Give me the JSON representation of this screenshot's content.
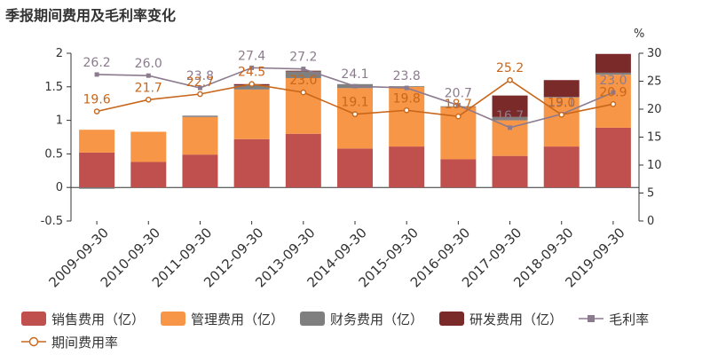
{
  "title": "季报期间费用及毛利率变化",
  "chart_data": {
    "type": "bar",
    "stacked": true,
    "categories": [
      "2009-09-30",
      "2010-09-30",
      "2011-09-30",
      "2012-09-30",
      "2013-09-30",
      "2014-09-30",
      "2015-09-30",
      "2016-09-30",
      "2017-09-30",
      "2018-09-30",
      "2019-09-30"
    ],
    "y_left": {
      "ylim": [
        -0.5,
        2
      ],
      "ticks": [
        -0.5,
        0,
        0.5,
        1,
        1.5,
        2
      ],
      "unit": ""
    },
    "y_right": {
      "ylim": [
        0,
        30
      ],
      "ticks": [
        0,
        5,
        10,
        15,
        20,
        25,
        30
      ],
      "unit": "%"
    },
    "series": [
      {
        "name": "销售费用（亿）",
        "color": "#c0504d",
        "axis": "left",
        "type": "bar",
        "values": [
          0.52,
          0.38,
          0.49,
          0.72,
          0.8,
          0.58,
          0.61,
          0.42,
          0.47,
          0.61,
          0.89
        ]
      },
      {
        "name": "管理费用（亿）",
        "color": "#f79646",
        "axis": "left",
        "type": "bar",
        "values": [
          0.34,
          0.45,
          0.56,
          0.74,
          0.83,
          0.9,
          0.89,
          0.78,
          0.53,
          0.73,
          0.79
        ]
      },
      {
        "name": "财务费用（亿）",
        "color": "#7f7f7f",
        "axis": "left",
        "type": "bar",
        "values": [
          -0.02,
          0.0,
          0.02,
          0.06,
          0.1,
          0.06,
          0.01,
          0.01,
          0.05,
          0.01,
          0.03
        ]
      },
      {
        "name": "研发费用（亿）",
        "color": "#7b2a2a",
        "axis": "left",
        "type": "bar",
        "values": [
          0,
          0,
          0,
          0.02,
          0.01,
          0,
          0,
          0,
          0.32,
          0.25,
          0.28
        ]
      },
      {
        "name": "毛利率",
        "color": "#8c7b8e",
        "axis": "right",
        "type": "line",
        "marker": "square",
        "values": [
          26.2,
          26.0,
          23.8,
          27.4,
          27.2,
          24.1,
          23.8,
          20.7,
          16.7,
          19.1,
          23.0
        ],
        "labels": [
          "26.2",
          "26.0",
          "23.8",
          "27.4",
          "27.2",
          "24.1",
          "23.8",
          "20.7",
          "16.7",
          "19.1",
          "23.0"
        ]
      },
      {
        "name": "期间费用率",
        "color": "#c8661a",
        "axis": "right",
        "type": "line",
        "marker": "circle",
        "values": [
          19.6,
          21.7,
          22.7,
          24.5,
          23.0,
          19.1,
          19.8,
          18.7,
          25.2,
          19.0,
          20.9
        ],
        "labels": [
          "19.6",
          "21.7",
          "22.7",
          "24.5",
          "23.0",
          "19.1",
          "19.8",
          "18.7",
          "25.2",
          "19.0",
          "20.9"
        ]
      }
    ],
    "legend_position": "bottom",
    "grid": false
  }
}
